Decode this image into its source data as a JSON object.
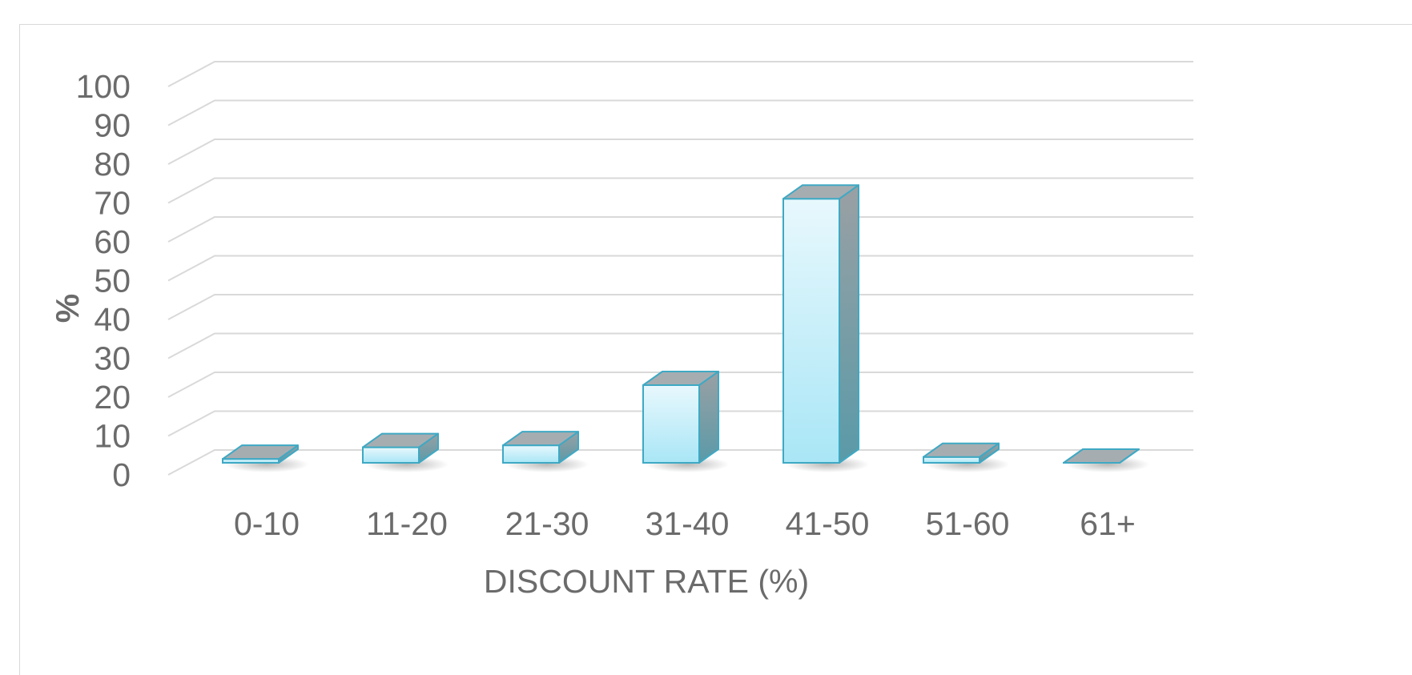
{
  "chart_data": {
    "type": "bar",
    "style": "3d-column",
    "categories": [
      "0-10",
      "11-20",
      "21-30",
      "31-40",
      "41-50",
      "51-60",
      "61+"
    ],
    "values": [
      1,
      4,
      4.5,
      20,
      68,
      1.5,
      0
    ],
    "xlabel": "DISCOUNT RATE (%)",
    "ylabel": "%",
    "ylim": [
      0,
      100
    ],
    "yticks": [
      "0",
      "10",
      "20",
      "30",
      "40",
      "50",
      "60",
      "70",
      "80",
      "90",
      "100"
    ],
    "grid": true,
    "legend": "none",
    "colors": {
      "bar_front_top": "#e8f8fd",
      "bar_front_bottom": "#a9e6f6",
      "bar_side_top": "#9aa0a4",
      "bar_side_bottom": "#5a9aa8",
      "bar_top": "#a6adb1",
      "bar_edge": "#3ea9c4",
      "grid": "#d9d9d9",
      "text": "#6b6b6b"
    }
  }
}
